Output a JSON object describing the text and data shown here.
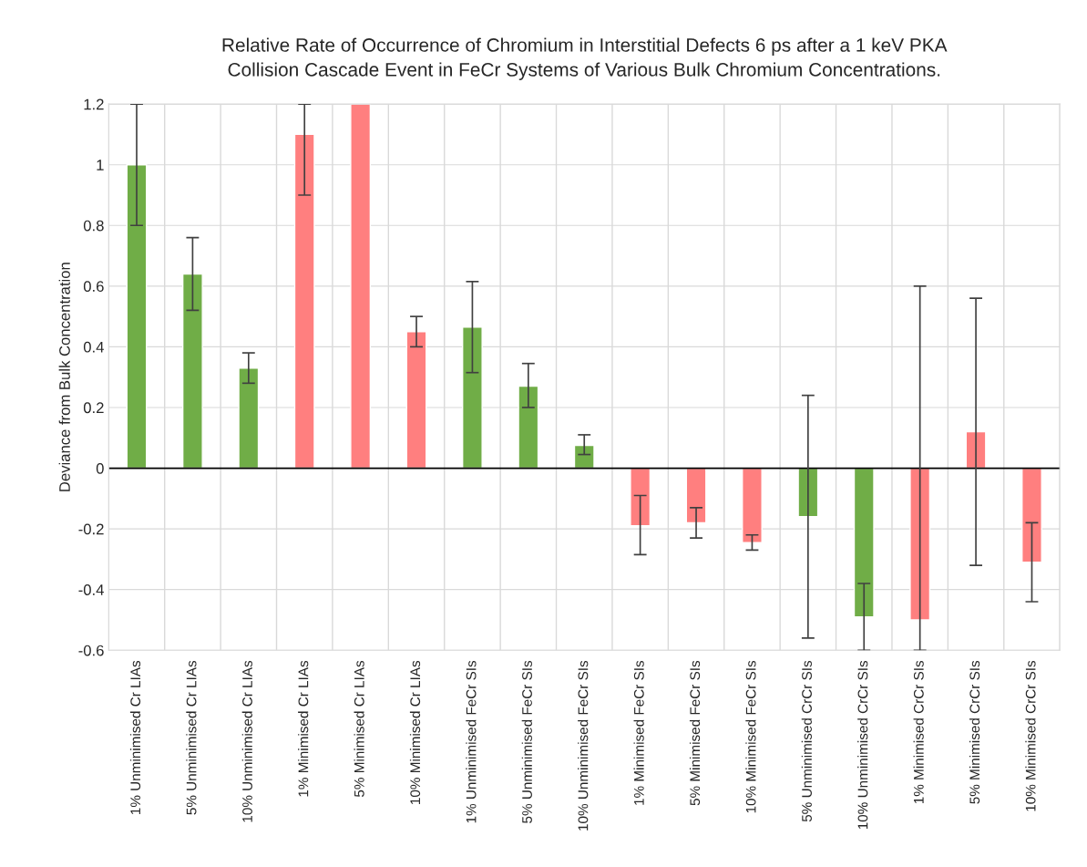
{
  "chart_data": {
    "type": "bar",
    "title": "Relative Rate of Occurrence of Chromium in Interstitial Defects 6 ps after a 1 keV PKA\nCollision Cascade Event in FeCr Systems of Various Bulk Chromium Concentrations.",
    "ylabel": "Deviance from Bulk Concentration",
    "categories": [
      "1% Unminimised Cr LIAs",
      "5% Unminimised Cr LIAs",
      "10% Unminimised Cr LIAs",
      "1% Minimised Cr LIAs",
      "5% Minimised Cr LIAs",
      "10% Minimised Cr LIAs",
      "1% Unminimised FeCr SIs",
      "5% Unminimised FeCr SIs",
      "10% Unminimised FeCr SIs",
      "1% Minimised FeCr SIs",
      "5% Minimised FeCr SIs",
      "10% Minimised FeCr SIs",
      "5% Unminimised CrCr SIs",
      "10% Unminimised CrCr SIs",
      "1% Minimised CrCr SIs",
      "5% Minimised CrCr SIs",
      "10% Minimised CrCr SIs"
    ],
    "values": [
      1.0,
      0.64,
      0.33,
      1.1,
      1.2,
      0.45,
      0.465,
      0.27,
      0.075,
      -0.19,
      -0.18,
      -0.245,
      -0.16,
      -0.49,
      -0.5,
      0.12,
      -0.31
    ],
    "colors": [
      "#70ad47",
      "#70ad47",
      "#70ad47",
      "#ff7f7f",
      "#ff7f7f",
      "#ff7f7f",
      "#70ad47",
      "#70ad47",
      "#70ad47",
      "#ff7f7f",
      "#ff7f7f",
      "#ff7f7f",
      "#70ad47",
      "#70ad47",
      "#ff7f7f",
      "#ff7f7f",
      "#ff7f7f"
    ],
    "errors": [
      [
        0.8,
        1.2
      ],
      [
        0.52,
        0.76
      ],
      [
        0.28,
        0.38
      ],
      [
        0.9,
        1.2
      ],
      null,
      [
        0.4,
        0.5
      ],
      [
        0.315,
        0.615
      ],
      [
        0.2,
        0.345
      ],
      [
        0.045,
        0.11
      ],
      [
        -0.285,
        -0.09
      ],
      [
        -0.23,
        -0.13
      ],
      [
        -0.27,
        -0.22
      ],
      [
        -0.56,
        0.24
      ],
      [
        -0.6,
        -0.38
      ],
      [
        -0.6,
        0.6
      ],
      [
        -0.32,
        0.56
      ],
      [
        -0.44,
        -0.18
      ]
    ],
    "ylim": [
      -0.6,
      1.2
    ],
    "yticks": [
      {
        "value": -0.6,
        "label": "-0.6"
      },
      {
        "value": -0.4,
        "label": "-0.4"
      },
      {
        "value": -0.2,
        "label": "-0.2"
      },
      0,
      0.2,
      0.4,
      0.6,
      0.8,
      1,
      1.2
    ],
    "ref_lines": [
      {
        "axis": "y",
        "value": 0,
        "color": "#000000"
      }
    ],
    "grid": true,
    "legend": false
  }
}
